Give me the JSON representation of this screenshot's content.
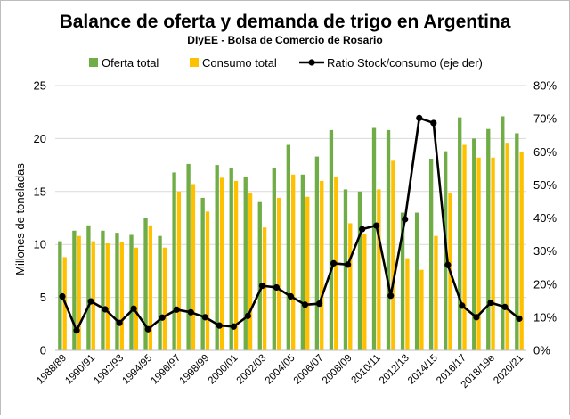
{
  "chart_data": {
    "type": "bar",
    "title": "Balance de oferta y demanda de trigo en Argentina",
    "subtitle": "DIyEE - Bolsa de Comercio de Rosario",
    "ylabel": "Millones de toneladas",
    "ylim": [
      0,
      25
    ],
    "y2lim": [
      0,
      80
    ],
    "yticks": [
      "0",
      "5",
      "10",
      "15",
      "20",
      "25"
    ],
    "y2ticks": [
      "0%",
      "10%",
      "20%",
      "30%",
      "40%",
      "50%",
      "60%",
      "70%",
      "80%"
    ],
    "categories": [
      "1988/89",
      "1989/90",
      "1990/91",
      "1991/92",
      "1992/93",
      "1993/94",
      "1994/95",
      "1995/96",
      "1996/97",
      "1997/98",
      "1998/99",
      "1999/00",
      "2000/01",
      "2001/02",
      "2002/03",
      "2003/04",
      "2004/05",
      "2005/06",
      "2006/07",
      "2007/08",
      "2008/09",
      "2009/10",
      "2010/11",
      "2011/12",
      "2012/13",
      "2013/14",
      "2014/15",
      "2015/16",
      "2016/17",
      "2017/18",
      "2018/19e",
      "2019/20",
      "2020/21"
    ],
    "xtick_labels": [
      "1988/89",
      "1990/91",
      "1992/93",
      "1994/95",
      "1996/97",
      "1998/99",
      "2000/01",
      "2002/03",
      "2004/05",
      "2006/07",
      "2008/09",
      "2010/11",
      "2012/13",
      "2014/15",
      "2016/17",
      "2018/19e",
      "2020/21"
    ],
    "series": [
      {
        "name": "Oferta total",
        "kind": "bar",
        "axis": "left",
        "color": "#70ad47",
        "values": [
          10.3,
          11.3,
          11.8,
          11.3,
          11.1,
          10.9,
          12.5,
          10.8,
          16.8,
          17.6,
          14.4,
          17.5,
          17.2,
          16.4,
          14.0,
          17.2,
          19.4,
          16.6,
          18.3,
          20.8,
          15.2,
          15.0,
          21.0,
          20.8,
          13.0,
          13.0,
          18.1,
          18.8,
          22.0,
          20.0,
          20.9,
          22.1,
          20.5
        ]
      },
      {
        "name": "Consumo total",
        "kind": "bar",
        "axis": "left",
        "color": "#ffc000",
        "values": [
          8.8,
          10.8,
          10.3,
          10.1,
          10.2,
          9.7,
          11.8,
          9.7,
          15.0,
          15.7,
          13.1,
          16.3,
          16.0,
          14.9,
          11.6,
          14.4,
          16.6,
          14.5,
          16.0,
          16.4,
          12.0,
          11.0,
          15.2,
          17.9,
          8.7,
          7.6,
          10.8,
          14.9,
          19.4,
          18.2,
          18.2,
          19.6,
          18.7
        ]
      },
      {
        "name": "Ratio Stock/consumo (eje der)",
        "kind": "line",
        "axis": "right",
        "color": "#000000",
        "values": [
          16.3,
          6.0,
          14.8,
          12.4,
          8.3,
          12.6,
          6.4,
          9.9,
          12.3,
          11.5,
          10.0,
          7.5,
          7.2,
          10.4,
          19.5,
          19.0,
          16.3,
          13.8,
          14.1,
          26.3,
          25.9,
          36.6,
          37.7,
          16.5,
          39.6,
          70.2,
          68.7,
          25.8,
          13.5,
          10.0,
          14.4,
          13.1,
          9.6
        ]
      }
    ]
  }
}
